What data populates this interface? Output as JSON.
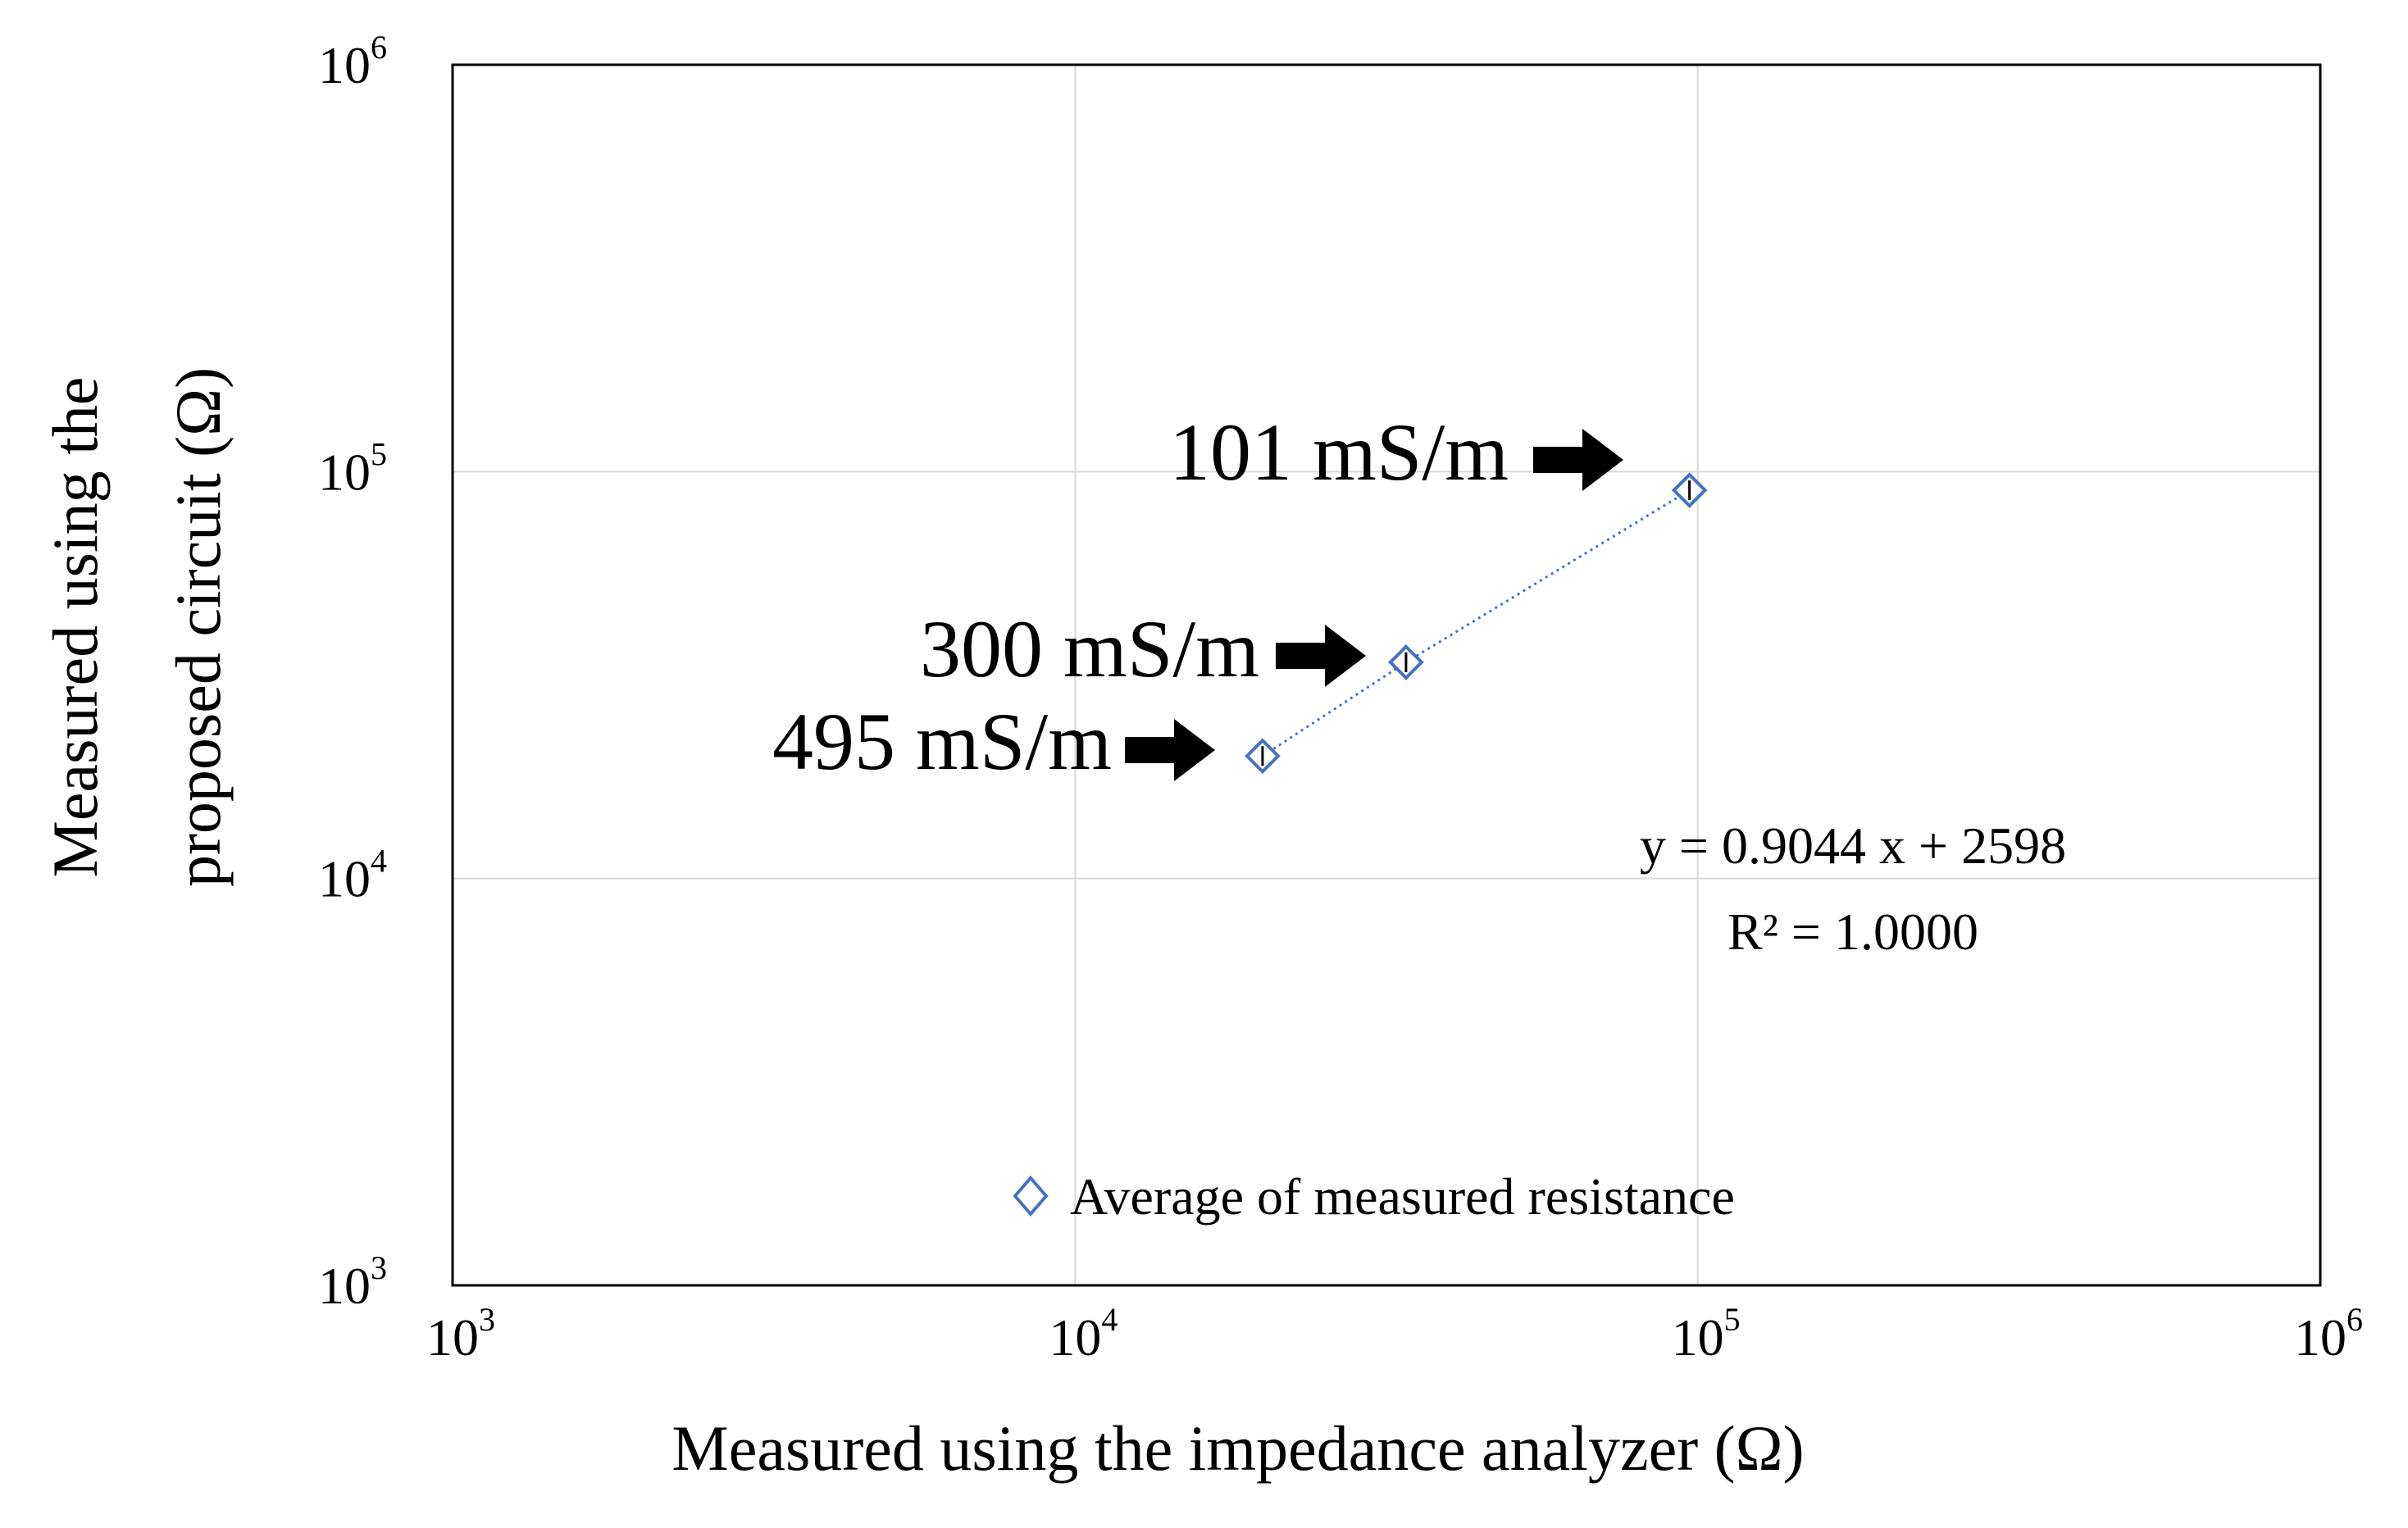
{
  "chart_data": {
    "type": "scatter",
    "xscale": "log",
    "yscale": "log",
    "xlim": [
      1000,
      1000000
    ],
    "ylim": [
      1000,
      1000000
    ],
    "xticks": [
      {
        "base": "10",
        "exp": "3"
      },
      {
        "base": "10",
        "exp": "4"
      },
      {
        "base": "10",
        "exp": "5"
      },
      {
        "base": "10",
        "exp": "6"
      }
    ],
    "yticks": [
      {
        "base": "10",
        "exp": "3"
      },
      {
        "base": "10",
        "exp": "4"
      },
      {
        "base": "10",
        "exp": "5"
      },
      {
        "base": "10",
        "exp": "6"
      }
    ],
    "xlabel": "Measured using the impedance analyzer (Ω)",
    "ylabel_line1": "Measured using the",
    "ylabel_line2": "proposed circuit (Ω)",
    "grid": true,
    "series": [
      {
        "name": "Average of measured resistance",
        "marker": "diamond",
        "color": "#4472C4",
        "points": [
          {
            "x": 20000,
            "y": 20000,
            "label": "495 mS/m"
          },
          {
            "x": 34000,
            "y": 34000,
            "label": "300 mS/m"
          },
          {
            "x": 97000,
            "y": 90000,
            "label": "101 mS/m"
          }
        ]
      }
    ],
    "trendline": {
      "equation": "y = 0.9044 x + 2598",
      "r2": "R² = 1.0000",
      "style": "dotted"
    },
    "legend": {
      "position": "bottom-center",
      "label": "Average of measured resistance"
    }
  }
}
